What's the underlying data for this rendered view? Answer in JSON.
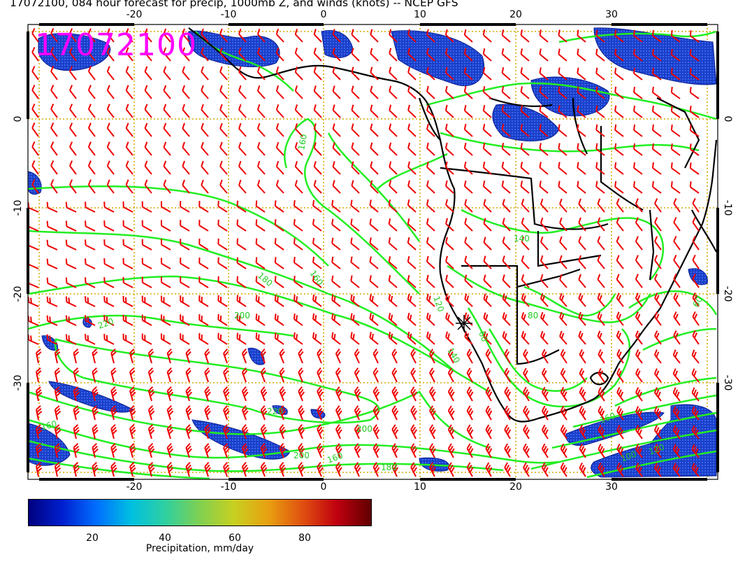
{
  "header": {
    "title": "17072100, 084 hour forecast for precip, 1000mb Z, and winds (knots) -- NCEP GFS"
  },
  "map": {
    "date_stamp": "17072100",
    "lon_top_labels": [
      "-20",
      "-10",
      "0",
      "10",
      "20",
      "30"
    ],
    "lon_bottom_labels": [
      "-20",
      "-10",
      "0",
      "10",
      "20",
      "30"
    ],
    "lat_left_labels": [
      "0",
      "-10",
      "-20",
      "-30"
    ],
    "lat_right_labels": [
      "0",
      "-10",
      "-20",
      "-30"
    ],
    "contour_labels": [
      "160",
      "180",
      "200",
      "220",
      "220",
      "200",
      "160",
      "140",
      "120",
      "160",
      "180",
      "200",
      "160",
      "140",
      "60",
      "60",
      "80",
      "100",
      "120",
      "160"
    ],
    "colors": {
      "contour": "#22ee22",
      "wind_barb": "#ee0000",
      "coast": "#000000",
      "grid": "#d4a800",
      "date_stamp": "#ff00ff",
      "precip_low": "#0a1d8f",
      "precip_mid": "#2050e8"
    }
  },
  "colorbar": {
    "label": "Precipitation, mm/day",
    "ticks": [
      "20",
      "40",
      "60",
      "80"
    ],
    "ramp": [
      "#000080",
      "#0020d0",
      "#0070ff",
      "#00c0e0",
      "#30d0a0",
      "#80d050",
      "#c8d020",
      "#e8a010",
      "#e05010",
      "#c00010",
      "#600000"
    ]
  }
}
